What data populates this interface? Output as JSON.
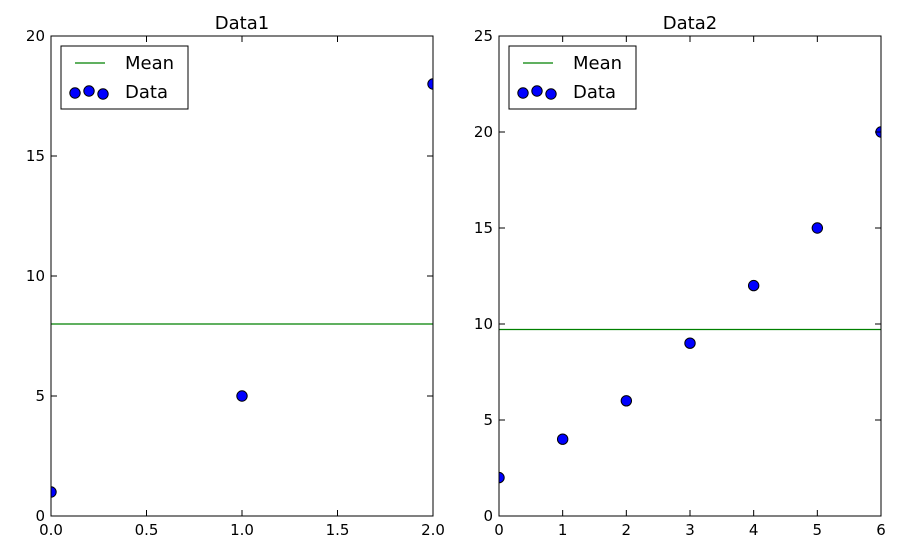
{
  "chart_data": [
    {
      "type": "scatter",
      "title": "Data1",
      "xlabel": "",
      "ylabel": "",
      "xlim": [
        0.0,
        2.0
      ],
      "ylim": [
        0,
        20
      ],
      "xticks": [
        "0.0",
        "0.5",
        "1.0",
        "1.5",
        "2.0"
      ],
      "yticks": [
        "0",
        "5",
        "10",
        "15",
        "20"
      ],
      "legend": {
        "placement": "upper-left",
        "entries": [
          "Mean",
          "Data"
        ]
      },
      "mean": 8,
      "series": [
        {
          "name": "Data",
          "kind": "scatter",
          "color": "#0000ff",
          "x": [
            0,
            1,
            2
          ],
          "y": [
            1,
            5,
            18
          ]
        },
        {
          "name": "Mean",
          "kind": "hline",
          "color": "#008000",
          "y": 8
        }
      ]
    },
    {
      "type": "scatter",
      "title": "Data2",
      "xlabel": "",
      "ylabel": "",
      "xlim": [
        0,
        6
      ],
      "ylim": [
        0,
        25
      ],
      "xticks": [
        "0",
        "1",
        "2",
        "3",
        "4",
        "5",
        "6"
      ],
      "yticks": [
        "0",
        "5",
        "10",
        "15",
        "20",
        "25"
      ],
      "legend": {
        "placement": "upper-left",
        "entries": [
          "Mean",
          "Data"
        ]
      },
      "mean": 9.714,
      "series": [
        {
          "name": "Data",
          "kind": "scatter",
          "color": "#0000ff",
          "x": [
            0,
            1,
            2,
            3,
            4,
            5,
            6
          ],
          "y": [
            2,
            4,
            6,
            9,
            12,
            15,
            20
          ]
        },
        {
          "name": "Mean",
          "kind": "hline",
          "color": "#008000",
          "y": 9.714
        }
      ]
    }
  ]
}
